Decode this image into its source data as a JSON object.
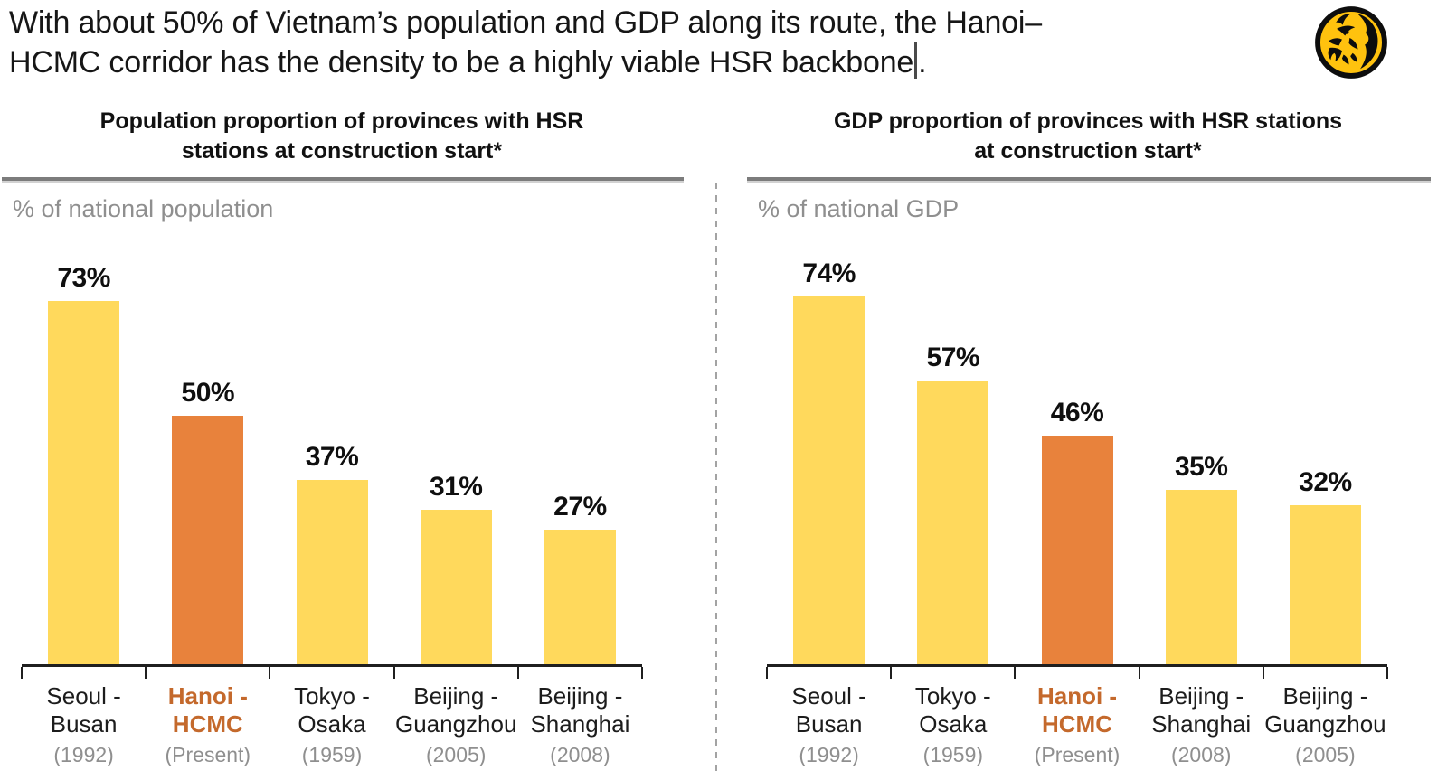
{
  "slide": {
    "title_line1": "With about 50% of Vietnam’s population and GDP along its route, the Hanoi–",
    "title_line2": "HCMC corridor has the density to be a highly viable HSR backbone",
    "title_period": "."
  },
  "logo": {
    "name": "maybank-tiger-logo"
  },
  "colors": {
    "bar_yellow": "#FFD95C",
    "bar_orange": "#E8823C",
    "highlight_text": "#C4692C",
    "muted_text": "#8F8F8F",
    "title_text": "#161616",
    "axis": "#1F1F1F",
    "logo_yellow": "#FFC20E"
  },
  "chart_data": [
    {
      "type": "bar",
      "title": "Population proportion of provinces with HSR stations at construction start*",
      "title_lines": [
        "Population proportion of provinces with HSR",
        "stations at construction start*"
      ],
      "unit_label": "% of national population",
      "categories": [
        "Seoul - Busan",
        "Hanoi - HCMC",
        "Tokyo - Osaka",
        "Beijing - Guangzhou",
        "Beijing - Shanghai"
      ],
      "category_lines": [
        [
          "Seoul -",
          "Busan"
        ],
        [
          "Hanoi -",
          "HCMC"
        ],
        [
          "Tokyo -",
          "Osaka"
        ],
        [
          "Beijing -",
          "Guangzhou"
        ],
        [
          "Beijing -",
          "Shanghai"
        ]
      ],
      "sublabels": [
        "(1992)",
        "(Present)",
        "(1959)",
        "(2005)",
        "(2008)"
      ],
      "values": [
        73,
        50,
        37,
        31,
        27
      ],
      "value_labels": [
        "73%",
        "50%",
        "37%",
        "31%",
        "27%"
      ],
      "highlight_index": 1,
      "bar_color": "#FFD95C",
      "highlight_color": "#E8823C",
      "xlabel": "",
      "ylabel": "% of national population",
      "ylim": [
        0,
        80
      ],
      "grid": false,
      "legend": false
    },
    {
      "type": "bar",
      "title": "GDP proportion of provinces with HSR stations at construction start*",
      "title_lines": [
        "GDP proportion of provinces with HSR stations",
        "at construction start*"
      ],
      "unit_label": "% of national GDP",
      "categories": [
        "Seoul - Busan",
        "Tokyo - Osaka",
        "Hanoi - HCMC",
        "Beijing - Shanghai",
        "Beijing - Guangzhou"
      ],
      "category_lines": [
        [
          "Seoul -",
          "Busan"
        ],
        [
          "Tokyo -",
          "Osaka"
        ],
        [
          "Hanoi -",
          "HCMC"
        ],
        [
          "Beijing -",
          "Shanghai"
        ],
        [
          "Beijing -",
          "Guangzhou"
        ]
      ],
      "sublabels": [
        "(1992)",
        "(1959)",
        "(Present)",
        "(2008)",
        "(2005)"
      ],
      "values": [
        74,
        57,
        46,
        35,
        32
      ],
      "value_labels": [
        "74%",
        "57%",
        "46%",
        "35%",
        "32%"
      ],
      "highlight_index": 2,
      "bar_color": "#FFD95C",
      "highlight_color": "#E8823C",
      "xlabel": "",
      "ylabel": "% of national GDP",
      "ylim": [
        0,
        80
      ],
      "grid": false,
      "legend": false
    }
  ]
}
